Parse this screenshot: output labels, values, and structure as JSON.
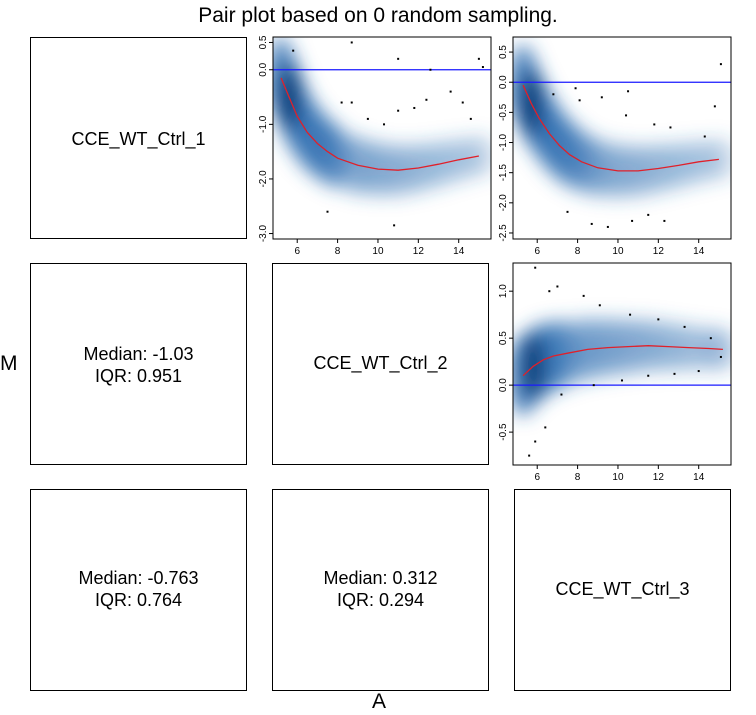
{
  "title": "Pair plot based on 0 random sampling.",
  "ylabel": "M",
  "xlabel": "A",
  "samples": [
    "CCE_WT_Ctrl_1",
    "CCE_WT_Ctrl_2",
    "CCE_WT_Ctrl_3"
  ],
  "stats": [
    {
      "median": "Median: -1.03",
      "iqr": "IQR: 0.951"
    },
    {
      "median": "Median: -0.763",
      "iqr": "IQR: 0.764"
    },
    {
      "median": "Median: 0.312",
      "iqr": "IQR: 0.294"
    }
  ],
  "colors": {
    "density": "#2b6cb0",
    "loess": "#e0202a",
    "zero_line": "#1a1aff",
    "outlier": "#000000"
  },
  "chart_data": [
    {
      "type": "scatter",
      "panel": "1 vs 2",
      "xlim": [
        4.8,
        15.6
      ],
      "ylim": [
        -3.1,
        0.6
      ],
      "x_ticks": [
        6,
        8,
        10,
        12,
        14
      ],
      "y_ticks": [
        0.5,
        0.0,
        -1.0,
        -2.0,
        -3.0
      ],
      "y_tick_labels": [
        "0.5",
        "0.0",
        "-1.0",
        "-2.0",
        "-3.0"
      ],
      "reference_line": 0,
      "loess": {
        "x": [
          5.2,
          5.6,
          6.0,
          6.5,
          7.0,
          7.5,
          8.0,
          9.0,
          10.0,
          11.0,
          12.0,
          13.0,
          14.0,
          15.0
        ],
        "y": [
          -0.15,
          -0.5,
          -0.85,
          -1.15,
          -1.35,
          -1.5,
          -1.62,
          -1.75,
          -1.82,
          -1.84,
          -1.8,
          -1.73,
          -1.65,
          -1.58
        ]
      },
      "outliers": {
        "x": [
          5.8,
          8.7,
          11.0,
          12.6,
          13.6,
          14.2,
          14.6,
          15.0,
          15.2,
          8.2,
          8.7,
          9.5,
          10.3,
          11.0,
          11.8,
          12.4,
          7.5,
          10.8
        ],
        "y": [
          0.35,
          0.5,
          0.2,
          0.0,
          -0.4,
          -0.6,
          -0.9,
          0.2,
          0.05,
          -0.6,
          -0.6,
          -0.9,
          -1.0,
          -0.75,
          -0.7,
          -0.55,
          -2.6,
          -2.85
        ]
      }
    },
    {
      "type": "scatter",
      "panel": "1 vs 3",
      "xlim": [
        4.8,
        15.6
      ],
      "ylim": [
        -2.6,
        0.75
      ],
      "x_ticks": [
        6,
        8,
        10,
        12,
        14
      ],
      "y_ticks": [
        0.5,
        0.0,
        -0.5,
        -1.0,
        -1.5,
        -2.0,
        -2.5
      ],
      "y_tick_labels": [
        "0.5",
        "0.0",
        "-0.5",
        "-1.0",
        "-1.5",
        "-2.0",
        "-2.5"
      ],
      "reference_line": 0,
      "loess": {
        "x": [
          5.3,
          5.7,
          6.1,
          6.6,
          7.1,
          7.6,
          8.2,
          9.0,
          10.0,
          11.0,
          12.0,
          13.0,
          14.0,
          15.0
        ],
        "y": [
          -0.05,
          -0.35,
          -0.6,
          -0.85,
          -1.05,
          -1.2,
          -1.32,
          -1.42,
          -1.47,
          -1.47,
          -1.43,
          -1.38,
          -1.32,
          -1.28
        ]
      },
      "outliers": {
        "x": [
          6.8,
          8.1,
          9.2,
          10.4,
          11.8,
          12.6,
          14.3,
          14.8,
          15.1,
          7.5,
          8.7,
          9.5,
          10.7,
          11.5,
          12.3,
          7.9,
          10.5
        ],
        "y": [
          -0.2,
          -0.3,
          -0.25,
          -0.55,
          -0.7,
          -0.75,
          -0.9,
          -0.4,
          0.3,
          -2.15,
          -2.35,
          -2.4,
          -2.3,
          -2.2,
          -2.3,
          -0.1,
          -0.15
        ]
      }
    },
    {
      "type": "scatter",
      "panel": "2 vs 3",
      "xlim": [
        4.8,
        15.6
      ],
      "ylim": [
        -0.85,
        1.3
      ],
      "x_ticks": [
        6,
        8,
        10,
        12,
        14
      ],
      "y_ticks": [
        1.0,
        0.5,
        0.0,
        -0.5
      ],
      "y_tick_labels": [
        "1.0",
        "0.5",
        "0.0",
        "-0.5"
      ],
      "reference_line": 0,
      "loess": {
        "x": [
          5.3,
          5.8,
          6.3,
          6.8,
          7.5,
          8.5,
          9.5,
          10.5,
          11.5,
          12.5,
          13.5,
          14.5,
          15.2
        ],
        "y": [
          0.1,
          0.2,
          0.27,
          0.31,
          0.34,
          0.38,
          0.4,
          0.41,
          0.42,
          0.41,
          0.4,
          0.39,
          0.38
        ]
      },
      "outliers": {
        "x": [
          5.9,
          6.6,
          7.0,
          8.3,
          9.1,
          10.6,
          12.0,
          13.3,
          14.6,
          15.1,
          5.6,
          5.9,
          6.4,
          7.2,
          8.8,
          10.2,
          11.5,
          12.8,
          14.0
        ],
        "y": [
          1.25,
          1.0,
          1.05,
          0.95,
          0.85,
          0.75,
          0.7,
          0.62,
          0.5,
          0.3,
          -0.75,
          -0.6,
          -0.45,
          -0.1,
          0.0,
          0.05,
          0.1,
          0.12,
          0.15
        ]
      }
    }
  ]
}
